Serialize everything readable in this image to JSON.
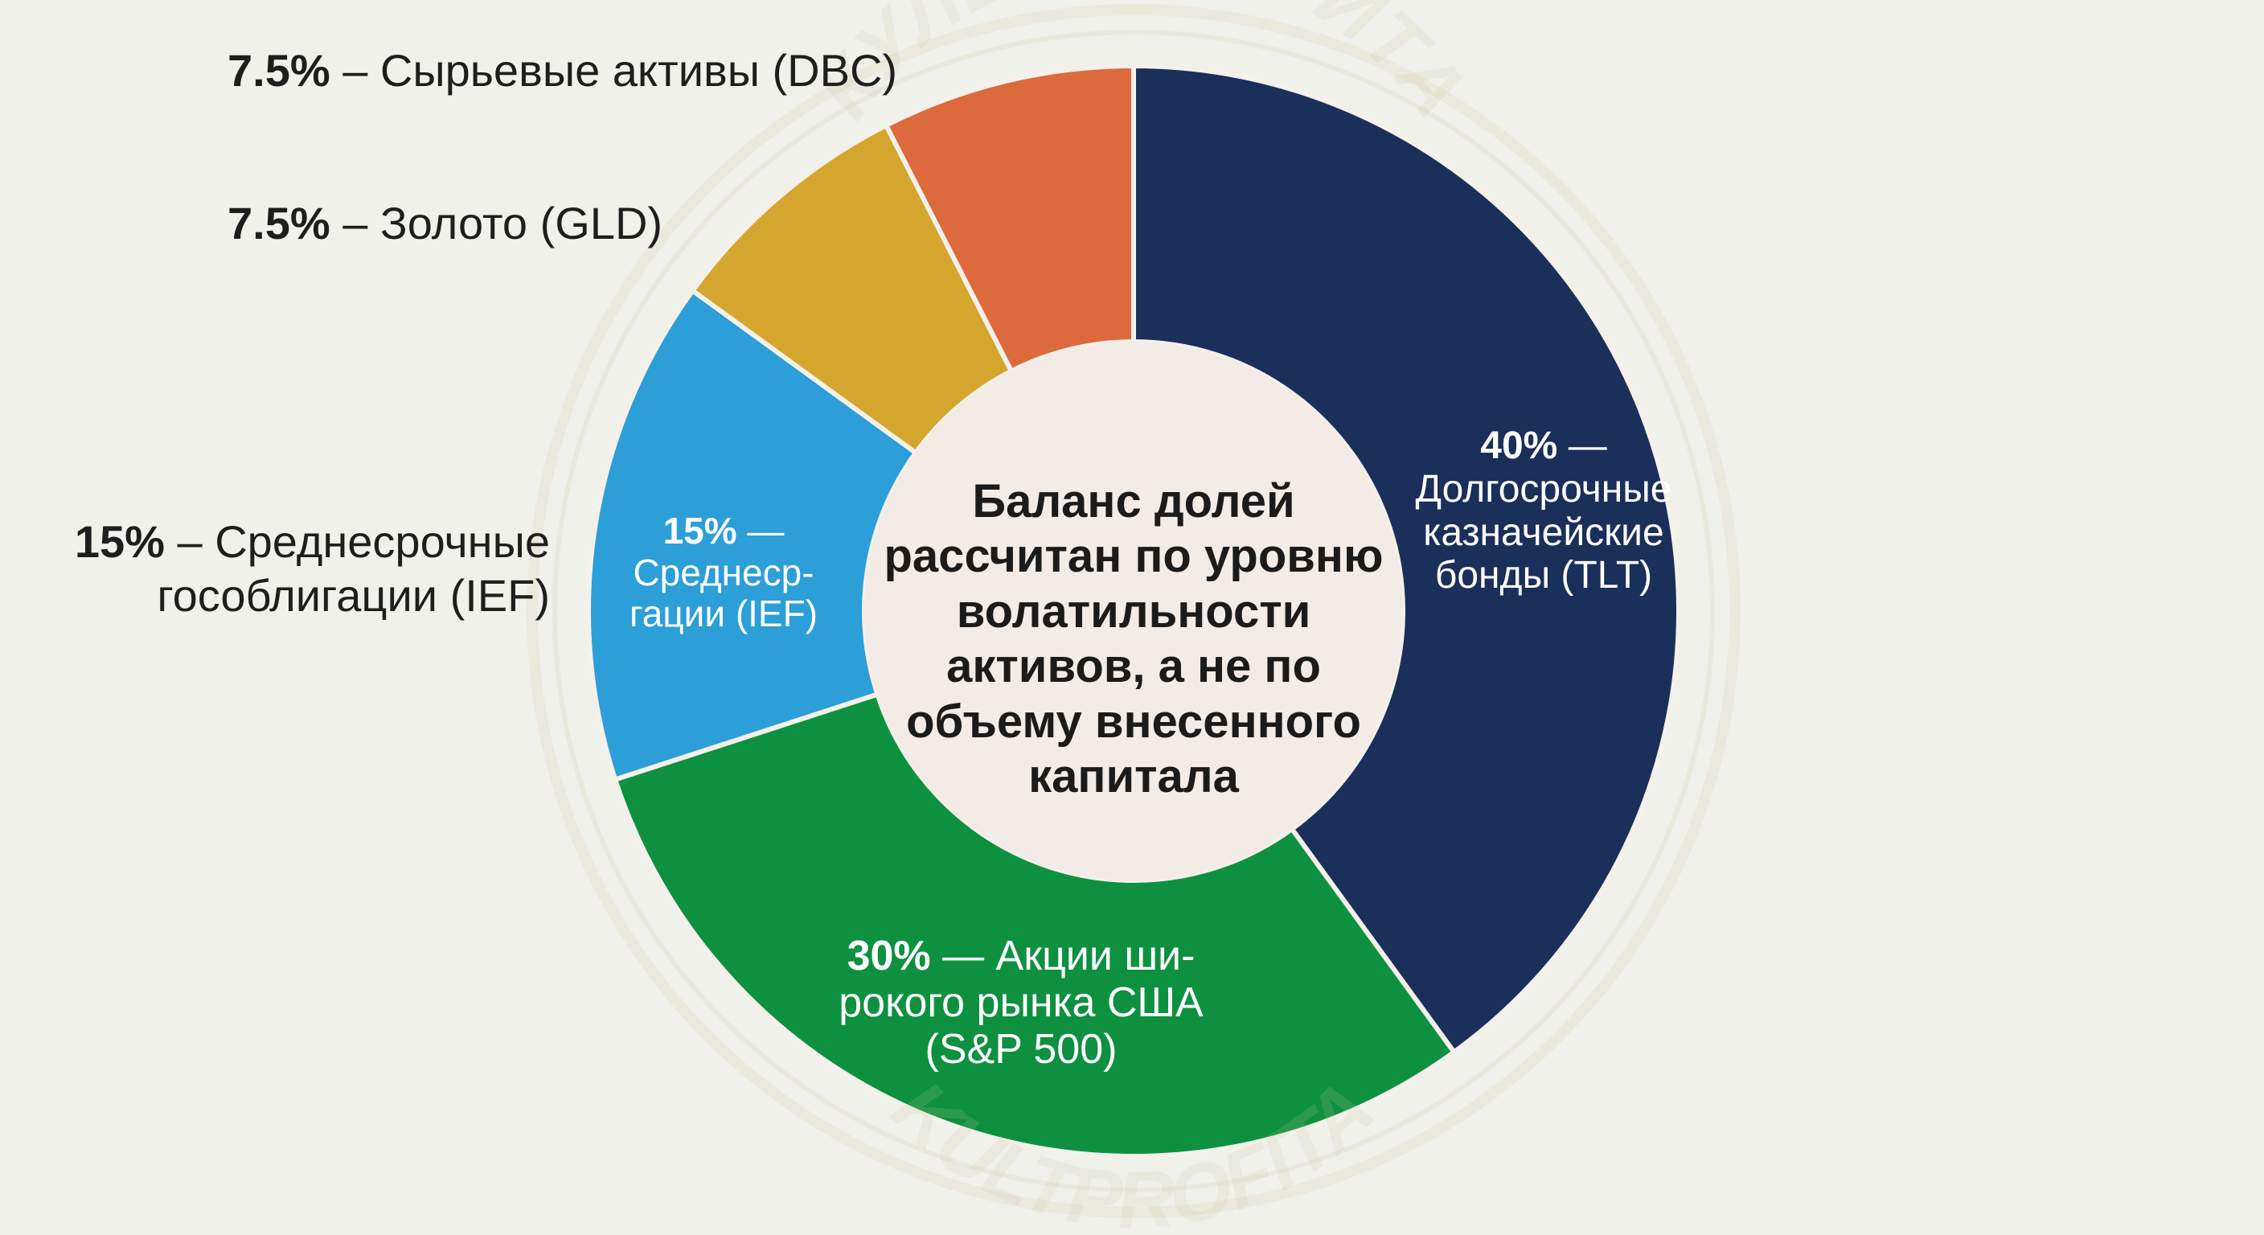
{
  "chart_data": {
    "type": "pie",
    "center_text": "Баланс долей\nрассчитан по уровню\nволатильности\nактивов, а не по\nобъему внесенного\nкапитала",
    "slices": [
      {
        "pct_label": "40%",
        "value": 40,
        "color": "#1a2f5a",
        "inner_line1_rest": "—",
        "inner_lines": [
          "Долгосрочные",
          "казначейские",
          "бонды (TLT)"
        ]
      },
      {
        "pct_label": "30%",
        "value": 30,
        "color": "#0d9140",
        "inner_line1_rest": "— Акции ши-",
        "inner_lines": [
          "рокого рынка США",
          "(S&P 500)"
        ]
      },
      {
        "pct_label": "15%",
        "value": 15,
        "color": "#2c9ed8",
        "inner_line1_rest": "—",
        "inner_lines": [
          "Среднеср-",
          "гации (IEF)"
        ],
        "outside_rest": "– Среднесрочные",
        "outside_line2": "гособлигации (IEF)"
      },
      {
        "pct_label": "7.5%",
        "value": 7.5,
        "color": "#d5a62e",
        "outside_rest": "– Золото (GLD)"
      },
      {
        "pct_label": "7.5%",
        "value": 7.5,
        "color": "#dc6a3c",
        "outside_rest": "– Сырьевые активы (DBC)"
      }
    ]
  },
  "watermark": {
    "text_top": "КУЛЬТ ПРОФИТА",
    "text_bottom": "KULTPROFITA"
  }
}
